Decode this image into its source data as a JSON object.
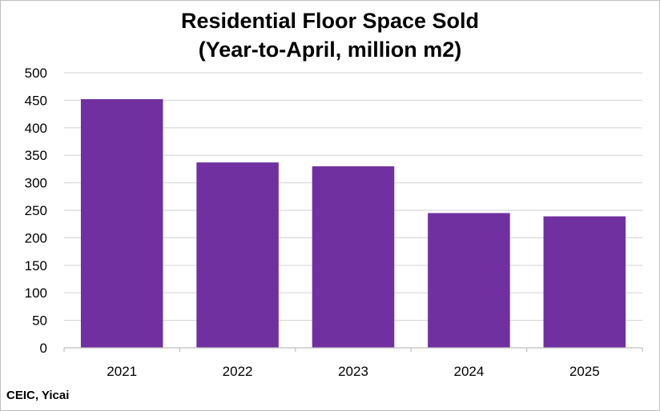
{
  "chart_data": {
    "type": "bar",
    "title": "Residential Floor Space Sold",
    "subtitle": "(Year-to-April, million m2)",
    "categories": [
      "2021",
      "2022",
      "2023",
      "2024",
      "2025"
    ],
    "values": [
      452,
      337,
      330,
      245,
      239
    ],
    "ylim": [
      0,
      500
    ],
    "yticks": [
      0,
      50,
      100,
      150,
      200,
      250,
      300,
      350,
      400,
      450,
      500
    ],
    "grid": true,
    "legend": "none",
    "bar_color": "#7030a0"
  },
  "source": "CEIC, Yicai"
}
